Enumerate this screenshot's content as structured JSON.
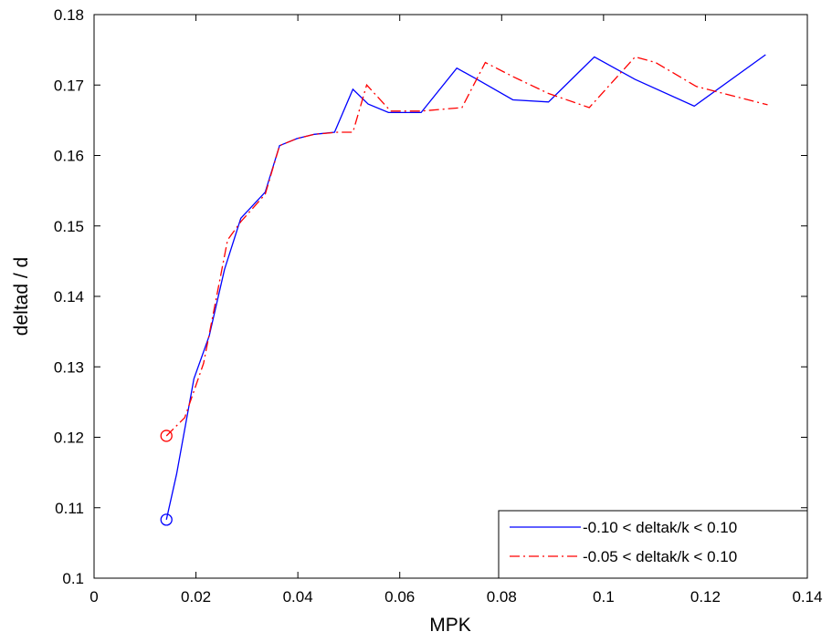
{
  "chart_data": {
    "type": "line",
    "title": "",
    "xlabel": "MPK",
    "ylabel": "deltad / d",
    "xlim": [
      0,
      0.14
    ],
    "ylim": [
      0.1,
      0.18
    ],
    "xticks": [
      0,
      0.02,
      0.04,
      0.06,
      0.08,
      0.1,
      0.12,
      0.14
    ],
    "xtick_labels": [
      "0",
      "0.02",
      "0.04",
      "0.06",
      "0.08",
      "0.1",
      "0.12",
      "0.14"
    ],
    "yticks": [
      0.1,
      0.11,
      0.12,
      0.13,
      0.14,
      0.15,
      0.16,
      0.17,
      0.18
    ],
    "ytick_labels": [
      "0.1",
      "0.11",
      "0.12",
      "0.13",
      "0.14",
      "0.15",
      "0.16",
      "0.17",
      "0.18"
    ],
    "grid": false,
    "legend_position": "bottom-right",
    "series": [
      {
        "name": "-0.10 < deltak/k < 0.10",
        "color": "#0000ff",
        "dash": "solid",
        "start_marker": "circle",
        "x": [
          0.0142,
          0.0162,
          0.0196,
          0.0226,
          0.0256,
          0.0288,
          0.0336,
          0.0364,
          0.0398,
          0.0432,
          0.0472,
          0.0508,
          0.0538,
          0.0578,
          0.0642,
          0.0712,
          0.0752,
          0.0822,
          0.0892,
          0.0982,
          0.1062,
          0.1178,
          0.1318
        ],
        "values": [
          0.1083,
          0.1148,
          0.1283,
          0.1344,
          0.1438,
          0.1511,
          0.1548,
          0.1614,
          0.1624,
          0.163,
          0.1633,
          0.1694,
          0.1673,
          0.1661,
          0.1661,
          0.1724,
          0.1708,
          0.1679,
          0.1676,
          0.174,
          0.1708,
          0.167,
          0.1743
        ]
      },
      {
        "name": "-0.05 < deltak/k < 0.10",
        "color": "#ff0000",
        "dash": "dashdot",
        "start_marker": "circle",
        "x": [
          0.0142,
          0.0178,
          0.0215,
          0.0262,
          0.0288,
          0.0336,
          0.0364,
          0.0398,
          0.0432,
          0.0478,
          0.0508,
          0.0535,
          0.0582,
          0.0642,
          0.0722,
          0.0768,
          0.0822,
          0.0892,
          0.0972,
          0.1062,
          0.1102,
          0.1182,
          0.1322
        ],
        "values": [
          0.1202,
          0.1228,
          0.1305,
          0.148,
          0.1506,
          0.1545,
          0.1614,
          0.1624,
          0.163,
          0.1633,
          0.1633,
          0.17,
          0.1663,
          0.1663,
          0.1668,
          0.1732,
          0.1712,
          0.1688,
          0.1668,
          0.174,
          0.1732,
          0.1698,
          0.1672
        ]
      }
    ]
  }
}
